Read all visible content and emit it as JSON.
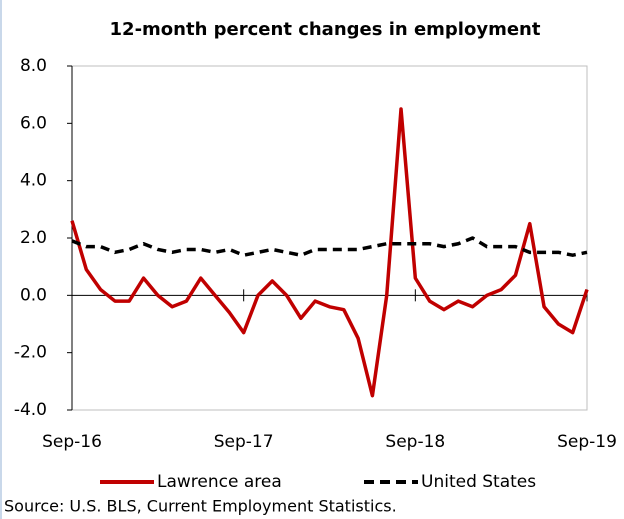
{
  "chart_data": {
    "type": "line",
    "title": "12-month percent changes in employment",
    "categories": [
      "Sep-16",
      null,
      null,
      null,
      null,
      null,
      null,
      null,
      null,
      null,
      null,
      null,
      "Sep-17",
      null,
      null,
      null,
      null,
      null,
      null,
      null,
      null,
      null,
      null,
      null,
      "Sep-18",
      null,
      null,
      null,
      null,
      null,
      null,
      null,
      null,
      null,
      null,
      null,
      "Sep-19"
    ],
    "series": [
      {
        "name": "Lawrence area",
        "color": "#c00000",
        "dash": "solid",
        "values": [
          2.6,
          0.9,
          0.2,
          -0.2,
          -0.2,
          0.6,
          0.0,
          -0.4,
          -0.2,
          0.6,
          0.0,
          -0.6,
          -1.3,
          0.0,
          0.5,
          0.0,
          -0.8,
          -0.2,
          -0.4,
          -0.5,
          -1.5,
          -3.5,
          0.0,
          6.5,
          0.6,
          -0.2,
          -0.5,
          -0.2,
          -0.4,
          0.0,
          0.2,
          0.7,
          2.5,
          -0.4,
          -1.0,
          -1.3,
          0.2
        ]
      },
      {
        "name": "United States",
        "color": "#000000",
        "dash": "dashed",
        "values": [
          1.9,
          1.7,
          1.7,
          1.5,
          1.6,
          1.8,
          1.6,
          1.5,
          1.6,
          1.6,
          1.5,
          1.6,
          1.4,
          1.5,
          1.6,
          1.5,
          1.4,
          1.6,
          1.6,
          1.6,
          1.6,
          1.7,
          1.8,
          1.8,
          1.8,
          1.8,
          1.7,
          1.8,
          2.0,
          1.7,
          1.7,
          1.7,
          1.5,
          1.5,
          1.5,
          1.4,
          1.5
        ]
      }
    ],
    "ylim": [
      -4,
      8
    ],
    "yticks": [
      {
        "value": -4,
        "label": "-4.0"
      },
      {
        "value": -2,
        "label": "-2.0"
      },
      {
        "value": 0,
        "label": "0.0"
      },
      {
        "value": 2,
        "label": "2.0"
      },
      {
        "value": 4,
        "label": "4.0"
      },
      {
        "value": 6,
        "label": "6.0"
      },
      {
        "value": 8,
        "label": "8.0"
      }
    ],
    "source": "Source: U.S. BLS, Current Employment Statistics."
  }
}
